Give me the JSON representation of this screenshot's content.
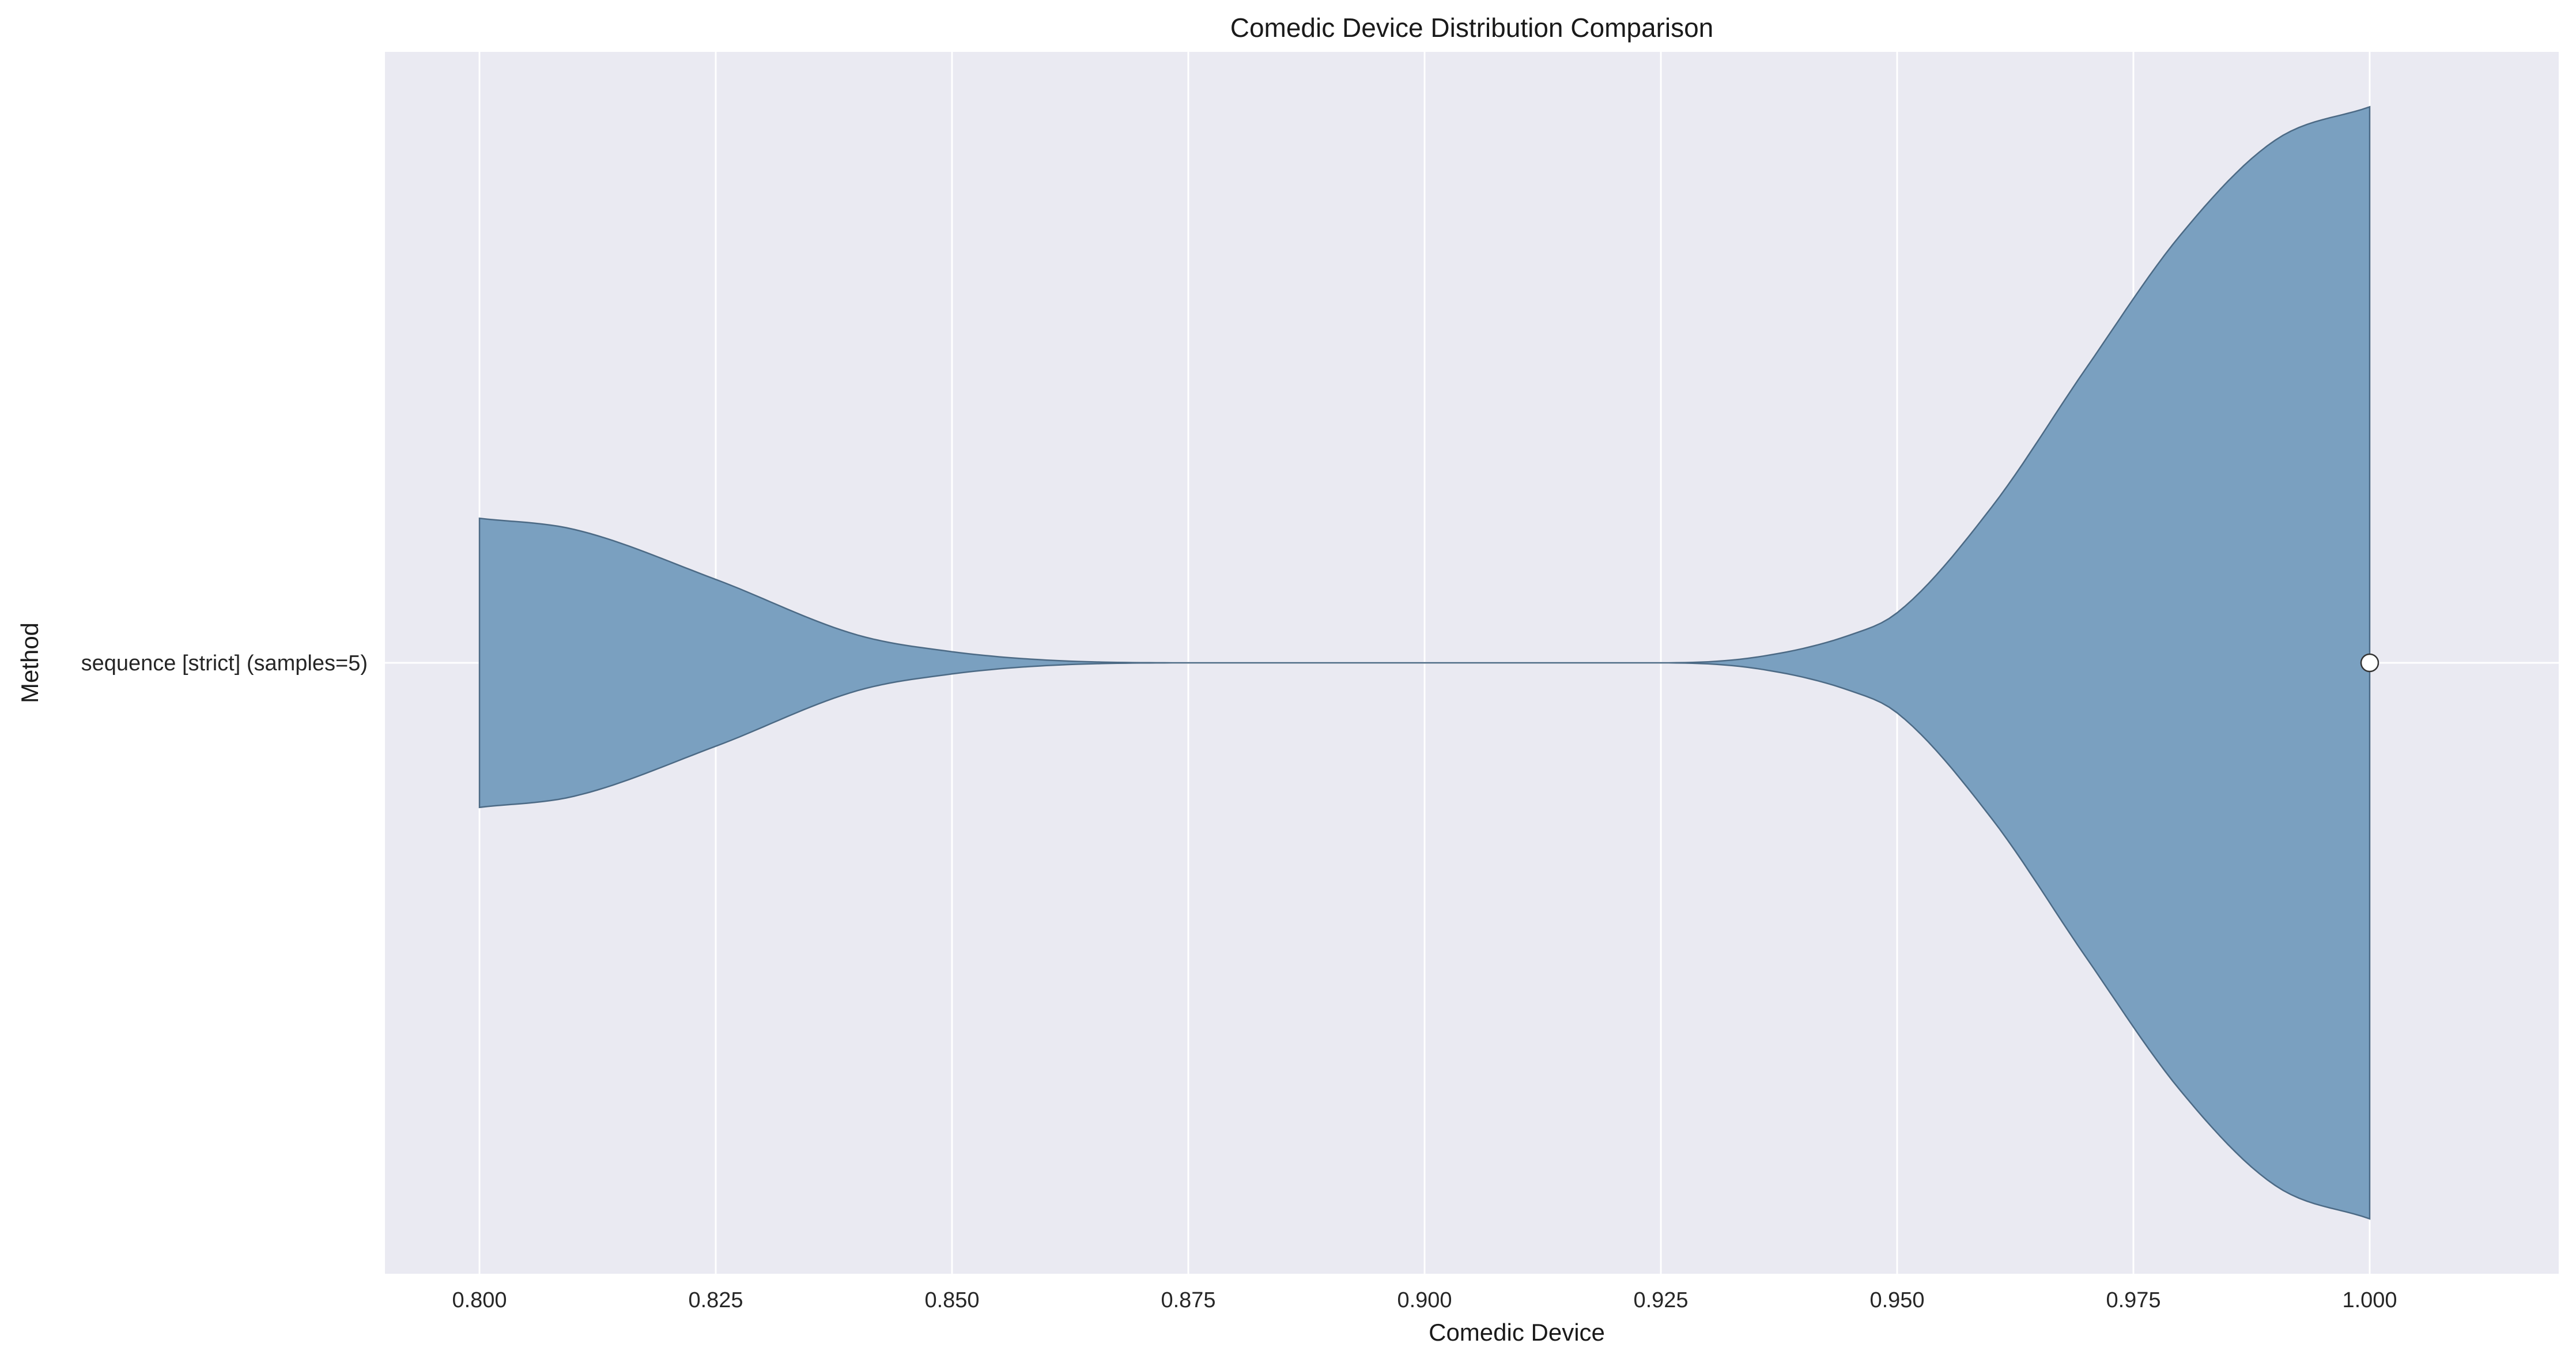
{
  "chart_data": {
    "type": "violin",
    "orientation": "horizontal",
    "title": "Comedic Device Distribution Comparison",
    "xlabel": "Comedic Device",
    "ylabel": "Method",
    "xlim": [
      0.79,
      1.02
    ],
    "xticks": [
      "0.800",
      "0.825",
      "0.850",
      "0.875",
      "0.900",
      "0.925",
      "0.950",
      "0.975",
      "1.000"
    ],
    "grid": true,
    "categories": [
      "sequence [strict] (samples=5)"
    ],
    "series": [
      {
        "category": "sequence [strict] (samples=5)",
        "color": "#7aa0c0",
        "edge_color": "#4c6a85",
        "cut_range": [
          0.8,
          1.0
        ],
        "median": 1.0,
        "density": {
          "x": [
            0.8,
            0.81,
            0.825,
            0.84,
            0.85,
            0.86,
            0.875,
            0.9,
            0.925,
            0.935,
            0.945,
            0.95,
            0.96,
            0.97,
            0.98,
            0.99,
            1.0
          ],
          "y": [
            0.26,
            0.24,
            0.15,
            0.05,
            0.02,
            0.005,
            0.0,
            0.0,
            0.0,
            0.01,
            0.05,
            0.09,
            0.28,
            0.53,
            0.77,
            0.94,
            1.0
          ]
        }
      }
    ],
    "colors": {
      "plot_background": "#eaeaf2",
      "grid": "#ffffff",
      "median_marker": "#ffffff"
    }
  }
}
